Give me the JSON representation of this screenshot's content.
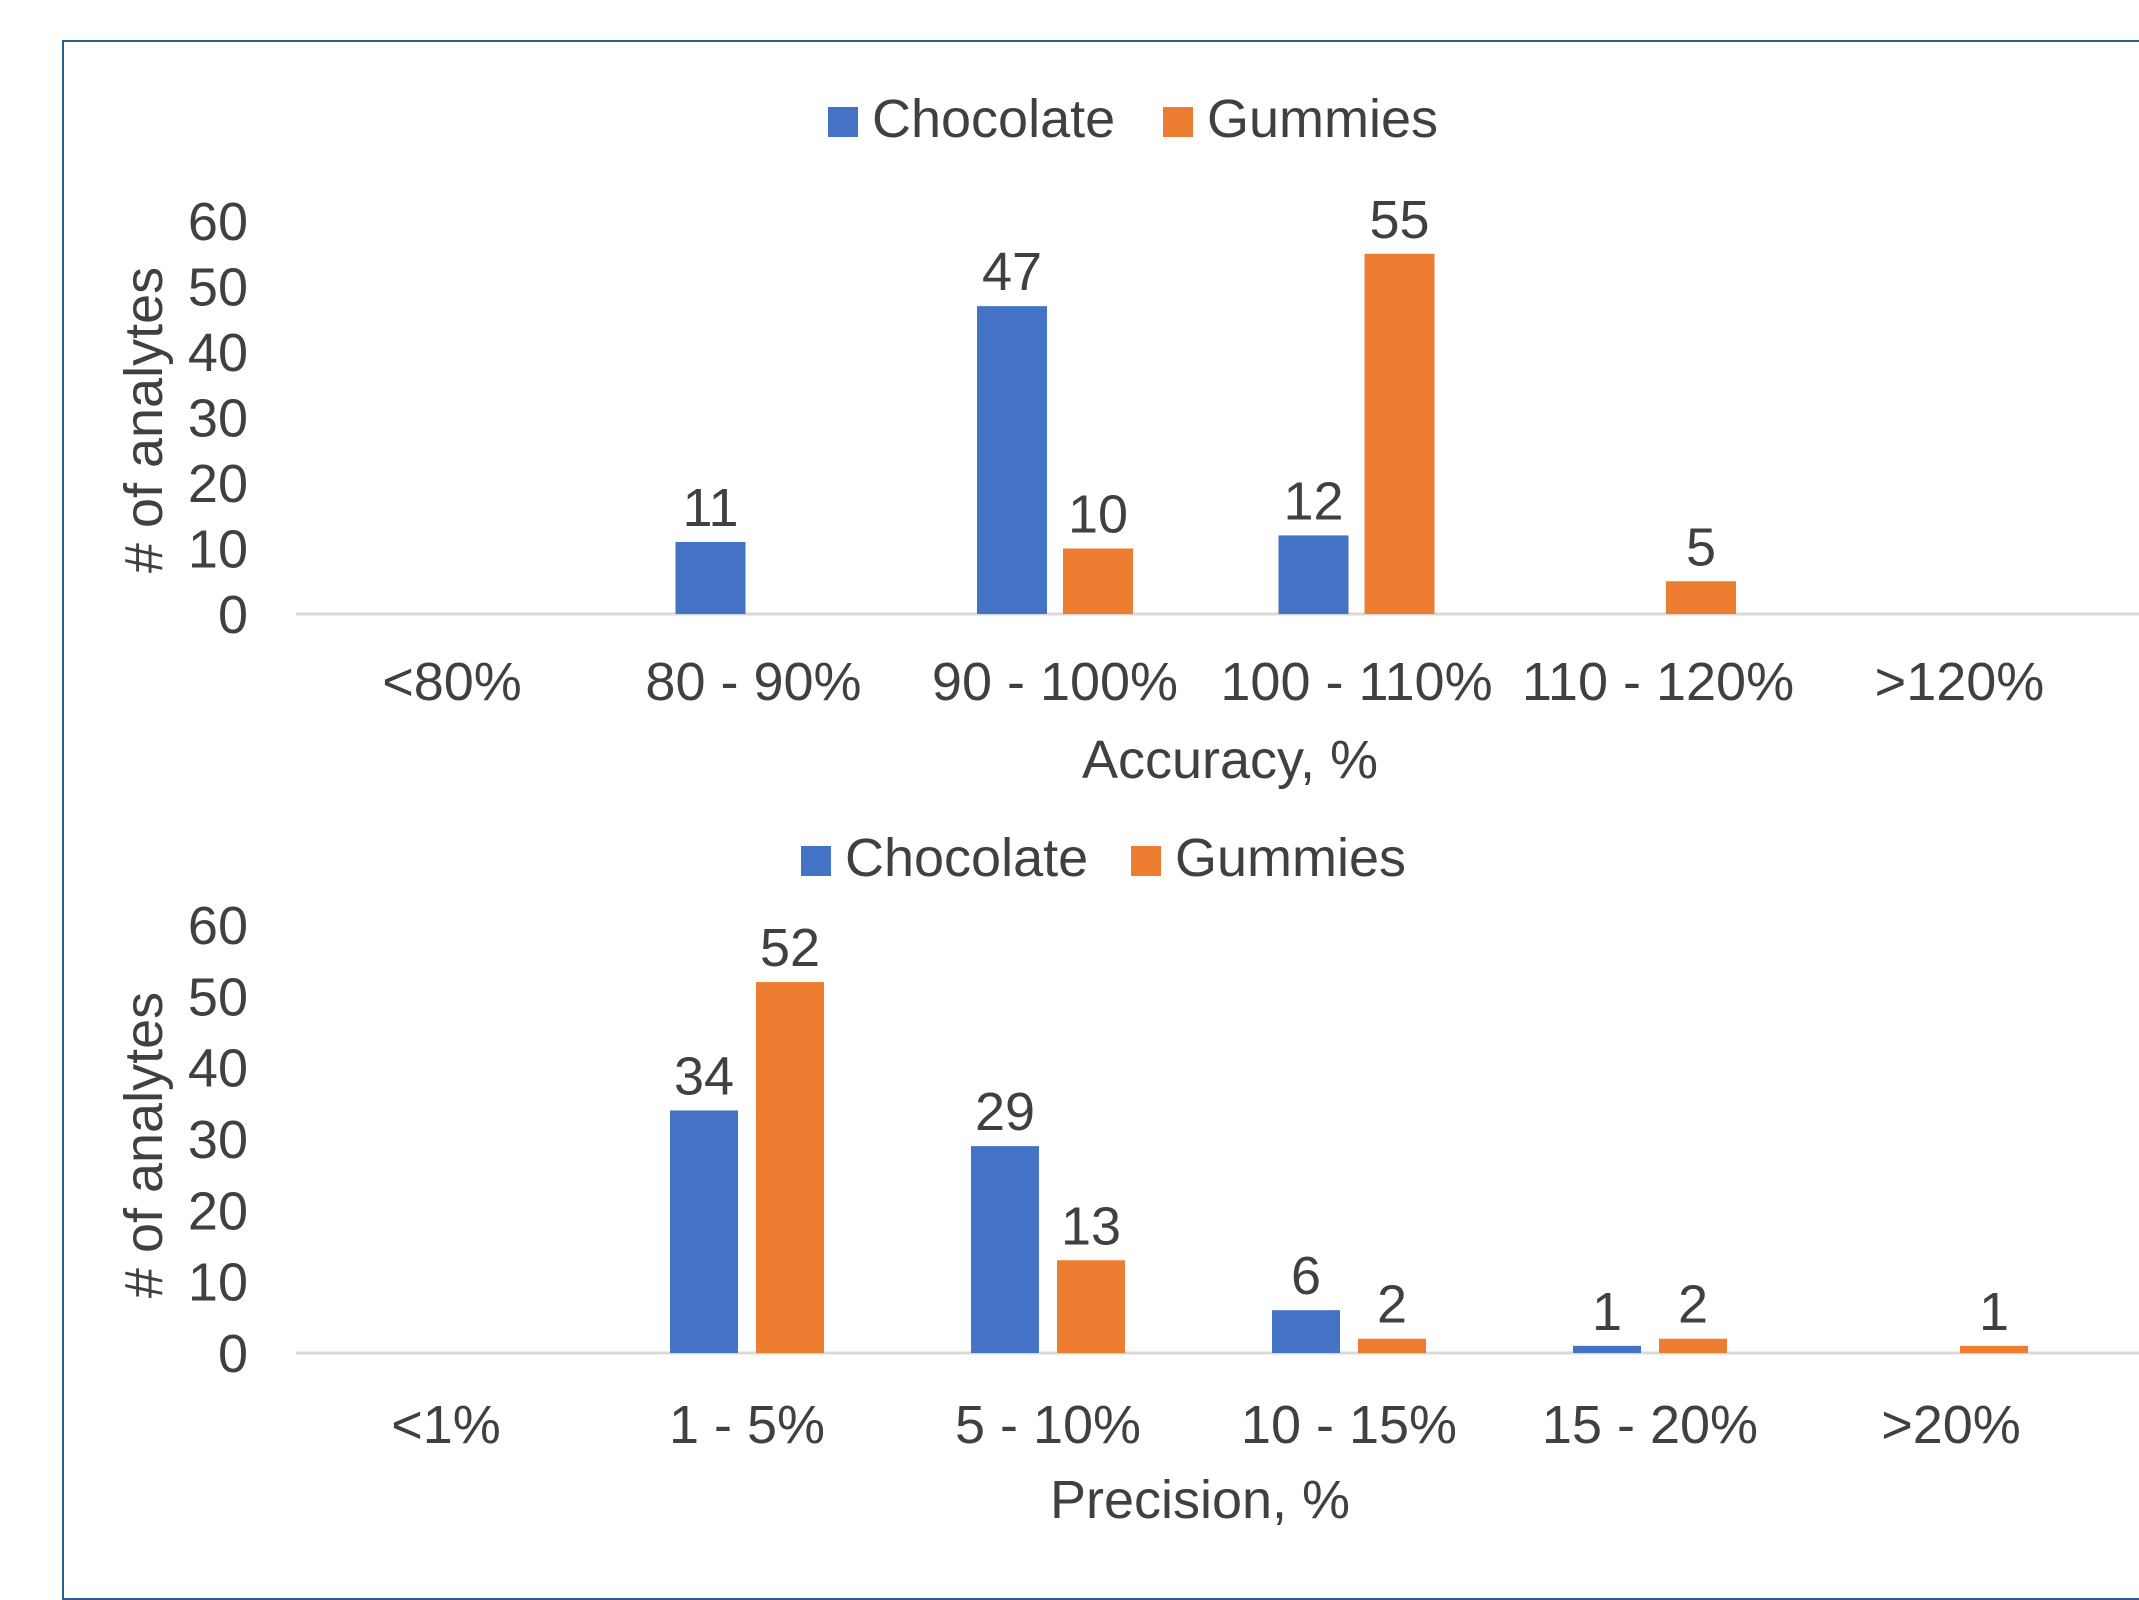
{
  "colors": {
    "chocolate": "#4472c4",
    "gummies": "#ed7d31",
    "axis": "#d9d9d9",
    "text": "#404040",
    "frame": "#2e5f8a"
  },
  "chart_data": [
    {
      "type": "bar",
      "title": "",
      "xlabel": "Accuracy, %",
      "ylabel": "# of analytes",
      "ylim": [
        0,
        60
      ],
      "yticks": [
        "0",
        "10",
        "20",
        "30",
        "40",
        "50",
        "60"
      ],
      "grid": false,
      "legend": "top",
      "categories": [
        "<80%",
        "80 - 90%",
        "90 - 100%",
        "100 - 110%",
        "110 - 120%",
        ">120%"
      ],
      "series": [
        {
          "name": "Chocolate",
          "values": [
            null,
            11,
            47,
            12,
            null,
            null
          ],
          "labels": [
            "",
            "11",
            "47",
            "12",
            "",
            ""
          ]
        },
        {
          "name": "Gummies",
          "values": [
            null,
            null,
            10,
            55,
            5,
            null
          ],
          "labels": [
            "",
            "",
            "10",
            "55",
            "5",
            ""
          ]
        }
      ]
    },
    {
      "type": "bar",
      "title": "",
      "xlabel": "Precision, %",
      "ylabel": "# of analytes",
      "ylim": [
        0,
        60
      ],
      "yticks": [
        "0",
        "10",
        "20",
        "30",
        "40",
        "50",
        "60"
      ],
      "grid": false,
      "legend": "top",
      "categories": [
        "<1%",
        "1 - 5%",
        "5 - 10%",
        "10 - 15%",
        "15 - 20%",
        ">20%"
      ],
      "series": [
        {
          "name": "Chocolate",
          "values": [
            null,
            34,
            29,
            6,
            1,
            null
          ],
          "labels": [
            "",
            "34",
            "29",
            "6",
            "1",
            ""
          ]
        },
        {
          "name": "Gummies",
          "values": [
            null,
            52,
            13,
            2,
            2,
            1
          ],
          "labels": [
            "",
            "52",
            "13",
            "2",
            "2",
            "1"
          ]
        }
      ]
    }
  ]
}
